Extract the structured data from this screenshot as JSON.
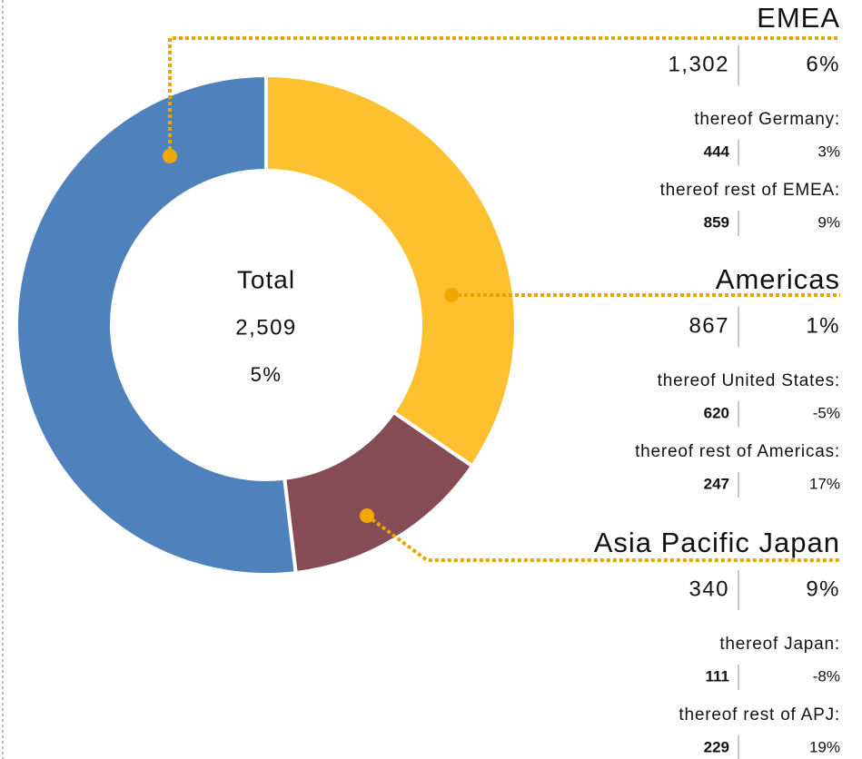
{
  "chart_data": {
    "type": "pie",
    "donut": true,
    "categories": [
      "Americas",
      "Asia Pacific Japan",
      "EMEA"
    ],
    "values": [
      867,
      340,
      1302
    ],
    "value_labels": [
      "867",
      "340",
      "1,302"
    ],
    "colors": [
      "#fdc12f",
      "#864c56",
      "#4f81bd"
    ],
    "growth": [
      1,
      9,
      6
    ],
    "growth_labels": [
      "1%",
      "9%",
      "6%"
    ],
    "details": [
      [
        {
          "label": "thereof United States:",
          "value": 620,
          "growth": -5,
          "growth_label": "-5%"
        },
        {
          "label": "thereof rest of Americas:",
          "value": 247,
          "growth": 17,
          "growth_label": "17%"
        }
      ],
      [
        {
          "label": "thereof Japan:",
          "value": 111,
          "growth": -8,
          "growth_label": "-8%"
        },
        {
          "label": "thereof rest of APJ:",
          "value": 229,
          "growth": 19,
          "growth_label": "19%"
        }
      ],
      [
        {
          "label": "thereof Germany:",
          "value": 444,
          "growth": 3,
          "growth_label": "3%"
        },
        {
          "label": "thereof rest of EMEA:",
          "value": 859,
          "growth": 9,
          "growth_label": "9%"
        }
      ]
    ],
    "center_title": "Total",
    "total": 2509,
    "total_label": "2,509",
    "total_growth": 5,
    "total_growth_label": "5%"
  }
}
